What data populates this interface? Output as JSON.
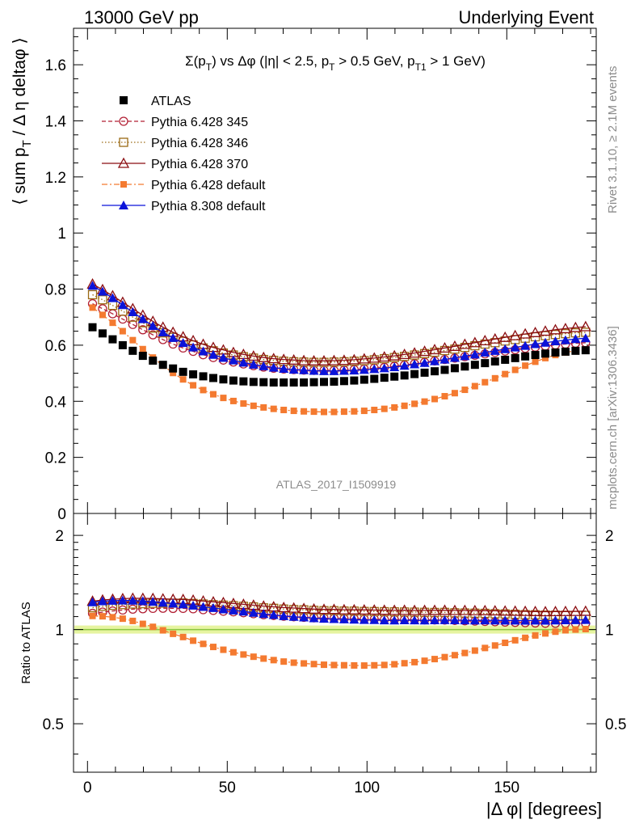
{
  "header": {
    "left": "13000 GeV pp",
    "right": "Underlying Event"
  },
  "side_text": {
    "top": "Rivet 3.1.10, ≥ 2.1M events",
    "bottom": "mcplots.cern.ch [arXiv:1306.3436]"
  },
  "analysis_id": "ATLAS_2017_I1509919",
  "chart_data": [
    {
      "type": "scatter",
      "title": "Σ(p_T) vs Δφ (|η| < 2.5, p_T > 0.5 GeV, p_T1 > 1 GeV)",
      "title_parts": {
        "a": "Σ(p",
        "a_sub": "T",
        "b": ") vs Δφ (|η| < 2.5, p",
        "b_sub": "T",
        "c": " > 0.5 GeV, p",
        "c_sub": "T1",
        "d": " > 1 GeV)"
      },
      "ylabel": "⟨ sum p_T / Δ η deltaφ ⟩",
      "ylabel_parts": {
        "a": "⟨ sum p",
        "sub": "T",
        "b": " / Δ η deltaφ ⟩"
      },
      "xlabel": "",
      "xlim": [
        -5,
        182
      ],
      "ylim": [
        0,
        1.73
      ],
      "x_ticks": [
        "0",
        "50",
        "100",
        "150"
      ],
      "y_ticks": [
        "0",
        "0.2",
        "0.4",
        "0.6",
        "0.8",
        "1",
        "1.2",
        "1.4",
        "1.6"
      ],
      "legend_position": "top-left",
      "x": [
        1.8,
        5.4,
        9.0,
        12.6,
        16.2,
        19.8,
        23.4,
        27.0,
        30.6,
        34.2,
        37.8,
        41.4,
        45.0,
        48.6,
        52.2,
        55.8,
        59.4,
        63.0,
        66.6,
        70.2,
        73.8,
        77.4,
        81.0,
        84.6,
        88.2,
        91.8,
        95.4,
        99.0,
        102.6,
        106.2,
        109.8,
        113.4,
        117.0,
        120.6,
        124.2,
        127.8,
        131.4,
        135.0,
        138.6,
        142.2,
        145.8,
        149.4,
        153.0,
        156.6,
        160.2,
        163.8,
        167.4,
        171.0,
        174.6,
        178.2
      ],
      "series": [
        {
          "name": "ATLAS",
          "color": "#000000",
          "marker": "square-filled",
          "line": "none",
          "values": [
            0.664,
            0.642,
            0.621,
            0.6,
            0.58,
            0.562,
            0.545,
            0.53,
            0.517,
            0.505,
            0.496,
            0.489,
            0.483,
            0.478,
            0.474,
            0.471,
            0.469,
            0.468,
            0.467,
            0.467,
            0.467,
            0.467,
            0.468,
            0.469,
            0.47,
            0.472,
            0.474,
            0.477,
            0.48,
            0.484,
            0.488,
            0.492,
            0.497,
            0.502,
            0.507,
            0.512,
            0.518,
            0.524,
            0.53,
            0.536,
            0.542,
            0.548,
            0.554,
            0.56,
            0.565,
            0.57,
            0.574,
            0.577,
            0.58,
            0.582
          ]
        },
        {
          "name": "Pythia 6.428 345",
          "color": "#b22035",
          "marker": "circle-open",
          "line": "dashed",
          "values": [
            0.748,
            0.73,
            0.712,
            0.693,
            0.674,
            0.655,
            0.637,
            0.62,
            0.604,
            0.59,
            0.578,
            0.566,
            0.556,
            0.547,
            0.54,
            0.533,
            0.527,
            0.522,
            0.518,
            0.515,
            0.513,
            0.511,
            0.51,
            0.51,
            0.51,
            0.511,
            0.513,
            0.515,
            0.518,
            0.521,
            0.525,
            0.529,
            0.534,
            0.539,
            0.544,
            0.549,
            0.554,
            0.559,
            0.564,
            0.569,
            0.574,
            0.579,
            0.584,
            0.589,
            0.593,
            0.597,
            0.601,
            0.604,
            0.607,
            0.609
          ]
        },
        {
          "name": "Pythia 6.428 346",
          "color": "#9a6a14",
          "marker": "square-open",
          "line": "dotted",
          "values": [
            0.78,
            0.762,
            0.742,
            0.721,
            0.7,
            0.68,
            0.661,
            0.644,
            0.628,
            0.614,
            0.601,
            0.59,
            0.58,
            0.572,
            0.565,
            0.559,
            0.554,
            0.549,
            0.546,
            0.543,
            0.541,
            0.54,
            0.539,
            0.539,
            0.54,
            0.541,
            0.543,
            0.545,
            0.548,
            0.552,
            0.556,
            0.56,
            0.565,
            0.57,
            0.575,
            0.581,
            0.586,
            0.592,
            0.598,
            0.604,
            0.609,
            0.615,
            0.62,
            0.625,
            0.63,
            0.634,
            0.638,
            0.641,
            0.644,
            0.646
          ]
        },
        {
          "name": "Pythia 6.428 370",
          "color": "#8b0e12",
          "marker": "triangle-open",
          "line": "solid",
          "values": [
            0.818,
            0.798,
            0.776,
            0.753,
            0.73,
            0.707,
            0.685,
            0.664,
            0.646,
            0.63,
            0.616,
            0.603,
            0.592,
            0.583,
            0.574,
            0.567,
            0.561,
            0.556,
            0.552,
            0.549,
            0.547,
            0.545,
            0.544,
            0.544,
            0.545,
            0.546,
            0.548,
            0.551,
            0.554,
            0.558,
            0.562,
            0.567,
            0.572,
            0.578,
            0.584,
            0.59,
            0.596,
            0.603,
            0.609,
            0.616,
            0.622,
            0.628,
            0.634,
            0.64,
            0.645,
            0.65,
            0.655,
            0.659,
            0.663,
            0.666
          ]
        },
        {
          "name": "Pythia 6.428 default",
          "color": "#f47a30",
          "marker": "square-filled-small",
          "line": "dashdot",
          "values": [
            0.734,
            0.708,
            0.68,
            0.65,
            0.618,
            0.586,
            0.556,
            0.527,
            0.501,
            0.478,
            0.457,
            0.44,
            0.425,
            0.412,
            0.401,
            0.392,
            0.384,
            0.378,
            0.373,
            0.369,
            0.366,
            0.364,
            0.363,
            0.362,
            0.362,
            0.363,
            0.364,
            0.366,
            0.369,
            0.373,
            0.378,
            0.384,
            0.391,
            0.399,
            0.408,
            0.418,
            0.429,
            0.441,
            0.454,
            0.468,
            0.482,
            0.497,
            0.512,
            0.527,
            0.541,
            0.554,
            0.565,
            0.574,
            0.58,
            0.584
          ]
        },
        {
          "name": "Pythia 8.308 default",
          "color": "#0b13d9",
          "marker": "triangle-filled",
          "line": "solid",
          "values": [
            0.812,
            0.791,
            0.768,
            0.743,
            0.718,
            0.693,
            0.669,
            0.646,
            0.626,
            0.608,
            0.592,
            0.578,
            0.566,
            0.555,
            0.546,
            0.538,
            0.531,
            0.525,
            0.52,
            0.516,
            0.513,
            0.511,
            0.509,
            0.508,
            0.508,
            0.509,
            0.51,
            0.512,
            0.515,
            0.518,
            0.522,
            0.527,
            0.532,
            0.537,
            0.543,
            0.549,
            0.555,
            0.561,
            0.567,
            0.574,
            0.58,
            0.586,
            0.592,
            0.598,
            0.604,
            0.609,
            0.614,
            0.618,
            0.622,
            0.625
          ]
        }
      ]
    },
    {
      "type": "scatter",
      "title": "",
      "ylabel": "Ratio to ATLAS",
      "xlabel": "|Δ φ| [degrees]",
      "xlim": [
        -5,
        182
      ],
      "ylim": [
        0.35,
        2.35
      ],
      "y_scale": "log",
      "x_ticks": [
        "0",
        "50",
        "100",
        "150"
      ],
      "y_ticks": [
        "0.5",
        "1",
        "2"
      ],
      "reference_band": {
        "value": 1,
        "color": "#8ac640",
        "band_color": "#e6f4a0"
      },
      "series_are_ratios_of": "chart 1 series divided by ATLAS"
    }
  ]
}
